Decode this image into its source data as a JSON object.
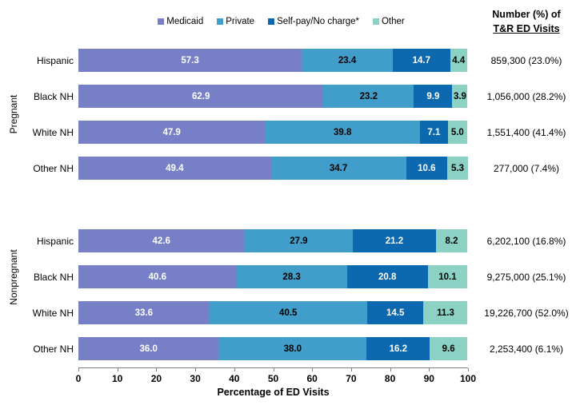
{
  "right_header": {
    "line1": "Number (%) of",
    "line2": "T&R ED Visits"
  },
  "chart_data": {
    "type": "bar",
    "stacked": true,
    "orientation": "horizontal",
    "title": "",
    "xlabel": "Percentage of ED Visits",
    "ylabel": "",
    "xlim": [
      0,
      100
    ],
    "xticks": [
      0,
      10,
      20,
      30,
      40,
      50,
      60,
      70,
      80,
      90,
      100
    ],
    "grid": false,
    "legend_position": "top-center",
    "series": [
      {
        "name": "Medicaid",
        "color": "#7780C6",
        "label_color": "#ffffff"
      },
      {
        "name": "Private",
        "color": "#419DCA",
        "label_color": "#000000"
      },
      {
        "name": "Self-pay/No charge*",
        "color": "#0D69AF",
        "label_color": "#ffffff"
      },
      {
        "name": "Other",
        "color": "#8BD2C4",
        "label_color": "#000000"
      }
    ],
    "groups": [
      {
        "name": "Pregnant",
        "rows": [
          {
            "category": "Hispanic",
            "values": [
              57.3,
              23.4,
              14.7,
              4.4
            ],
            "annotation": "859,300 (23.0%)"
          },
          {
            "category": "Black NH",
            "values": [
              62.9,
              23.2,
              9.9,
              3.9
            ],
            "annotation": "1,056,000 (28.2%)"
          },
          {
            "category": "White NH",
            "values": [
              47.9,
              39.8,
              7.1,
              5.0
            ],
            "annotation": "1,551,400 (41.4%)"
          },
          {
            "category": "Other NH",
            "values": [
              49.4,
              34.7,
              10.6,
              5.3
            ],
            "annotation": "277,000 (7.4%)"
          }
        ]
      },
      {
        "name": "Nonpregnant",
        "rows": [
          {
            "category": "Hispanic",
            "values": [
              42.6,
              27.9,
              21.2,
              8.2
            ],
            "annotation": "6,202,100 (16.8%)"
          },
          {
            "category": "Black NH",
            "values": [
              40.6,
              28.3,
              20.8,
              10.1
            ],
            "annotation": "9,275,000 (25.1%)"
          },
          {
            "category": "White NH",
            "values": [
              33.6,
              40.5,
              14.5,
              11.3
            ],
            "annotation": "19,226,700 (52.0%)"
          },
          {
            "category": "Other NH",
            "values": [
              36.0,
              38.0,
              16.2,
              9.6
            ],
            "annotation": "2,253,400 (6.1%)"
          }
        ]
      }
    ]
  }
}
